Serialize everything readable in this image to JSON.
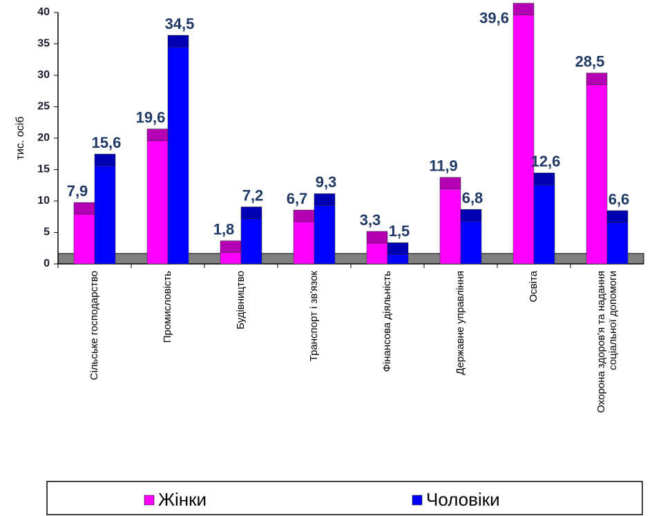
{
  "chart_data": {
    "type": "bar",
    "y_label": "тис. осіб",
    "categories": [
      "Сільське господарство",
      "Промисловість",
      "Будівництво",
      "Транспорт і зв'язок",
      "Фінансова діяльність",
      "Державне управління",
      "Освіта",
      "Охорона здоров'я та надання\nсоціальної допомоги"
    ],
    "series": [
      {
        "name": "Жінки",
        "color": "#ff00ff",
        "values": [
          7.9,
          19.6,
          1.8,
          6.7,
          3.3,
          11.9,
          39.6,
          28.5
        ],
        "value_labels": [
          "7,9",
          "19,6",
          "1,8",
          "6,7",
          "3,3",
          "11,9",
          "39,6",
          "28,5"
        ]
      },
      {
        "name": "Чоловіки",
        "color": "#0000ff",
        "values": [
          15.6,
          34.5,
          7.2,
          9.3,
          1.5,
          6.8,
          12.6,
          6.6
        ],
        "value_labels": [
          "15,6",
          "34,5",
          "7,2",
          "9,3",
          "1,5",
          "6,8",
          "12,6",
          "6,6"
        ]
      }
    ],
    "ylim": [
      0,
      40
    ],
    "yticks": [
      0,
      5,
      10,
      15,
      20,
      25,
      30,
      35,
      40
    ]
  }
}
